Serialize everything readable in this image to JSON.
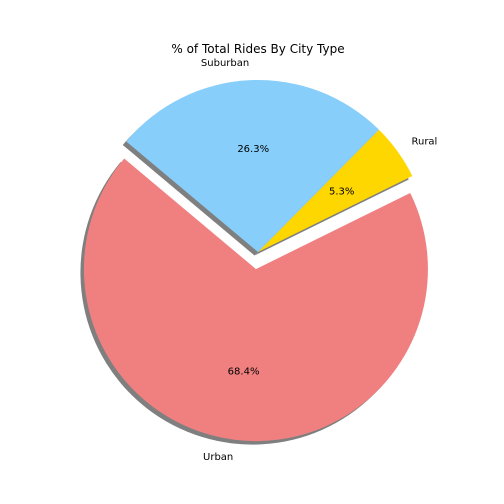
{
  "chart_data": {
    "type": "pie",
    "title": "% of Total Rides By City Type",
    "start_angle_deg": 140,
    "direction": "counterclockwise",
    "shadow": true,
    "slices": [
      {
        "label": "Urban",
        "value": 68.4,
        "pct_text": "68.4%",
        "color": "#F08080",
        "explode": 0.1
      },
      {
        "label": "Rural",
        "value": 5.3,
        "pct_text": "5.3%",
        "color": "#FFD700",
        "explode": 0.0
      },
      {
        "label": "Suburban",
        "value": 26.3,
        "pct_text": "26.3%",
        "color": "#87CEFA",
        "explode": 0.0
      }
    ]
  }
}
